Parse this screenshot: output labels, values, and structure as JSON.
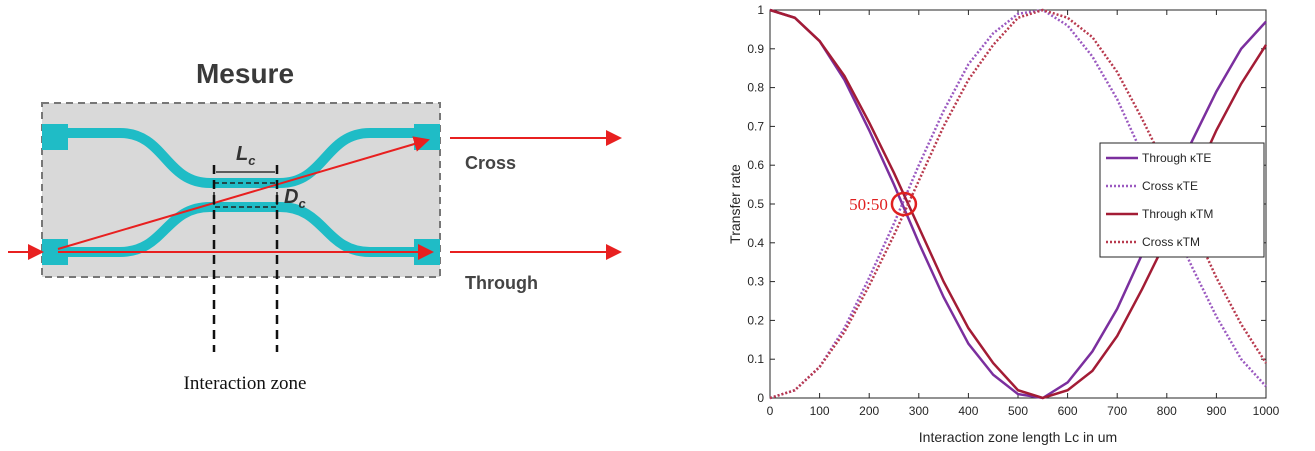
{
  "diagram": {
    "title": "Mesure",
    "length_label": {
      "main": "L",
      "sub": "c"
    },
    "gap_label": {
      "main": "D",
      "sub": "c"
    },
    "cross_label": "Cross",
    "through_label": "Through",
    "zone_label": "Interaction zone"
  },
  "chart_data": {
    "type": "line",
    "xlabel": "Interaction zone length Lc in um",
    "ylabel": "Transfer rate",
    "x": [
      0,
      50,
      100,
      150,
      200,
      250,
      300,
      350,
      400,
      450,
      500,
      550,
      600,
      650,
      700,
      750,
      800,
      850,
      900,
      950,
      1000
    ],
    "series": [
      {
        "name": "Through κTE",
        "color": "#7b2f9e",
        "style": "solid",
        "values": [
          1,
          0.98,
          0.92,
          0.82,
          0.69,
          0.55,
          0.4,
          0.26,
          0.14,
          0.06,
          0.01,
          0,
          0.04,
          0.12,
          0.23,
          0.37,
          0.52,
          0.66,
          0.79,
          0.9,
          0.97
        ]
      },
      {
        "name": "Cross κTE",
        "color": "#9b59c0",
        "style": "dotted",
        "values": [
          0,
          0.02,
          0.08,
          0.18,
          0.31,
          0.45,
          0.6,
          0.74,
          0.86,
          0.94,
          0.99,
          1,
          0.96,
          0.88,
          0.77,
          0.63,
          0.48,
          0.34,
          0.21,
          0.1,
          0.03
        ]
      },
      {
        "name": "Through κTM",
        "color": "#a31c35",
        "style": "solid",
        "values": [
          1,
          0.98,
          0.92,
          0.83,
          0.71,
          0.58,
          0.44,
          0.3,
          0.18,
          0.09,
          0.02,
          0,
          0.02,
          0.07,
          0.16,
          0.28,
          0.41,
          0.55,
          0.69,
          0.81,
          0.91
        ]
      },
      {
        "name": "Cross κTM",
        "color": "#b83a4e",
        "style": "dotted",
        "values": [
          0,
          0.02,
          0.08,
          0.17,
          0.29,
          0.42,
          0.56,
          0.7,
          0.82,
          0.91,
          0.98,
          1,
          0.98,
          0.93,
          0.84,
          0.72,
          0.59,
          0.45,
          0.31,
          0.19,
          0.09
        ]
      }
    ],
    "annotation": {
      "text": "50:50",
      "x": 270,
      "y": 0.5,
      "color": "#e02020"
    },
    "xlim": [
      0,
      1000
    ],
    "xticks": [
      0,
      100,
      200,
      300,
      400,
      500,
      600,
      700,
      800,
      900,
      1000
    ],
    "ylim": [
      0,
      1
    ],
    "yticks": [
      0,
      0.1,
      0.2,
      0.3,
      0.4,
      0.5,
      0.6,
      0.7,
      0.8,
      0.9,
      1
    ],
    "grid": false,
    "legend": "right"
  }
}
